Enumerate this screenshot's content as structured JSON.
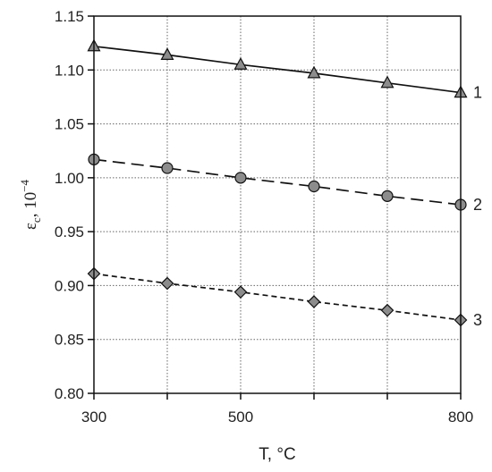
{
  "chart_data": {
    "type": "line",
    "xlabel": "T, °C",
    "ylabel": {
      "main": "ε",
      "subscript": "c",
      "rest": ", 10",
      "superscript": "−4"
    },
    "x_ticks": [
      300,
      400,
      500,
      600,
      700,
      800
    ],
    "x_tick_labels": [
      "300",
      "",
      "500",
      "",
      "",
      "800"
    ],
    "y_ticks": [
      0.8,
      0.85,
      0.9,
      0.95,
      1.0,
      1.05,
      1.1,
      1.15
    ],
    "y_tick_labels": [
      "0.80",
      "0.85",
      "0.90",
      "0.95",
      "1.00",
      "1.05",
      "1.10",
      "1.15"
    ],
    "xlim": [
      300,
      800
    ],
    "ylim": [
      0.8,
      1.15
    ],
    "grid": true,
    "grid_style": "dotted",
    "series": [
      {
        "name": "1",
        "marker": "triangle",
        "line": "solid",
        "x": [
          300,
          400,
          500,
          600,
          700,
          800
        ],
        "y": [
          1.122,
          1.114,
          1.105,
          1.097,
          1.088,
          1.079
        ]
      },
      {
        "name": "2",
        "marker": "circle",
        "line": "long-dash",
        "x": [
          300,
          400,
          500,
          600,
          700,
          800
        ],
        "y": [
          1.017,
          1.009,
          1.0,
          0.992,
          0.983,
          0.975
        ]
      },
      {
        "name": "3",
        "marker": "diamond",
        "line": "short-dash",
        "x": [
          300,
          400,
          500,
          600,
          700,
          800
        ],
        "y": [
          0.911,
          0.902,
          0.894,
          0.885,
          0.877,
          0.868
        ]
      }
    ],
    "colors": {
      "line": "#111111",
      "marker_fill": "#8c8c8c",
      "grid": "#666666",
      "axis": "#111111"
    }
  }
}
